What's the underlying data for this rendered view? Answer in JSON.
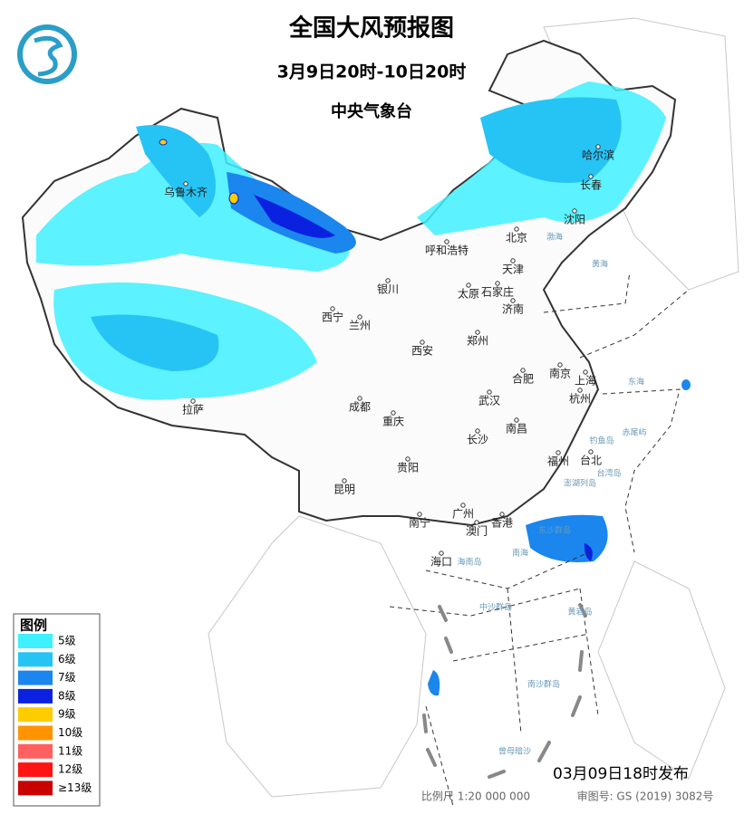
{
  "header": {
    "title": "全国大风预报图",
    "subtitle": "3月9日20时-10日20时",
    "issuer": "中央气象台"
  },
  "legend": {
    "title": "图例",
    "items": [
      {
        "label": "5级",
        "color": "#3ff0ff"
      },
      {
        "label": "6级",
        "color": "#26c4f5"
      },
      {
        "label": "7级",
        "color": "#1a86ee"
      },
      {
        "label": "8级",
        "color": "#0a22e0"
      },
      {
        "label": "9级",
        "color": "#ffcc00"
      },
      {
        "label": "10级",
        "color": "#ff9400"
      },
      {
        "label": "11级",
        "color": "#ff6060"
      },
      {
        "label": "12级",
        "color": "#ff1414"
      },
      {
        "label": "≥13级",
        "color": "#c80000"
      }
    ]
  },
  "cities": [
    "哈尔滨",
    "长春",
    "沈阳",
    "北京",
    "天津",
    "呼和浩特",
    "乌鲁木齐",
    "银川",
    "太原",
    "石家庄",
    "济南",
    "西宁",
    "兰州",
    "郑州",
    "西安",
    "合肥",
    "南京",
    "上海",
    "武汉",
    "杭州",
    "成都",
    "拉萨",
    "重庆",
    "南昌",
    "长沙",
    "福州",
    "台北",
    "贵阳",
    "昆明",
    "南宁",
    "广州",
    "澳门",
    "香港",
    "海口"
  ],
  "seas": [
    "渤海",
    "黄海",
    "东海",
    "南海",
    "台湾岛",
    "海南岛",
    "东沙群岛",
    "中沙群岛",
    "黄岩岛",
    "南沙群岛",
    "曾母暗沙",
    "钓鱼岛",
    "赤尾屿",
    "澎湖列岛"
  ],
  "footer": {
    "issued": "03月09日18时发布",
    "scale": "比例尺 1:20 000 000",
    "review": "审图号: GS (2019) 3082号"
  }
}
